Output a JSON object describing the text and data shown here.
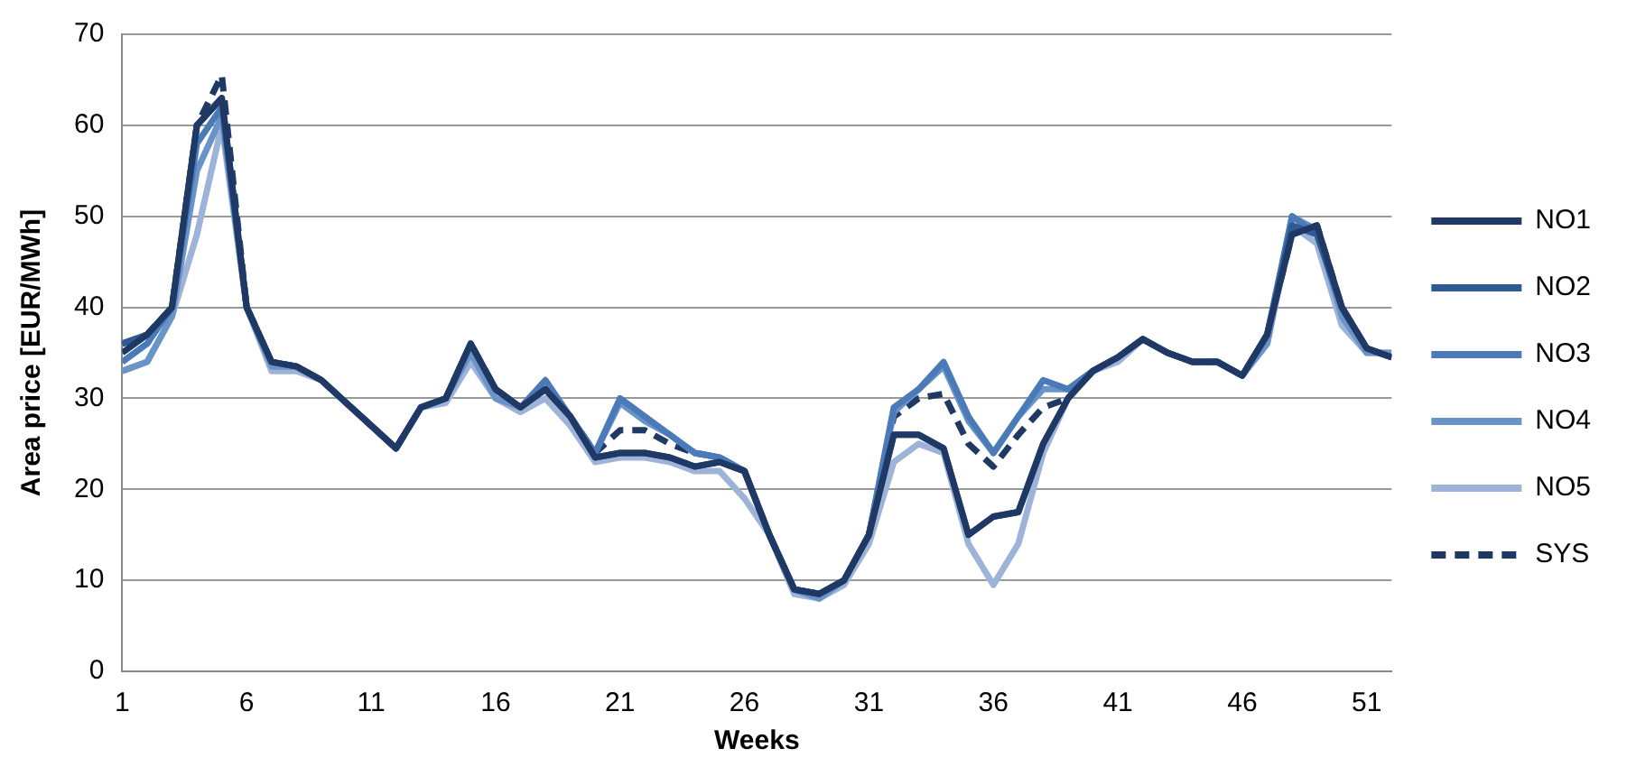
{
  "chart_data": {
    "type": "line",
    "xlabel": "Weeks",
    "ylabel": "Area price [EUR/MWh]",
    "x": [
      1,
      2,
      3,
      4,
      5,
      6,
      7,
      8,
      9,
      10,
      11,
      12,
      13,
      14,
      15,
      16,
      17,
      18,
      19,
      20,
      21,
      22,
      23,
      24,
      25,
      26,
      27,
      28,
      29,
      30,
      31,
      32,
      33,
      34,
      35,
      36,
      37,
      38,
      39,
      40,
      41,
      42,
      43,
      44,
      45,
      46,
      47,
      48,
      49,
      50,
      51,
      52
    ],
    "xlim": [
      1,
      52
    ],
    "xticks": [
      1,
      6,
      11,
      16,
      21,
      26,
      31,
      36,
      41,
      46,
      51
    ],
    "ylim": [
      0,
      70
    ],
    "yticks": [
      0,
      10,
      20,
      30,
      40,
      50,
      60,
      70
    ],
    "grid": "y",
    "legend": "right",
    "marker": "none",
    "line_style": "solid",
    "series": [
      {
        "name": "NO1",
        "color": "#1f3864",
        "values": [
          35,
          37,
          40,
          60,
          63,
          40,
          34,
          33.5,
          32,
          29.5,
          27,
          24.5,
          29,
          30,
          36,
          31,
          29,
          31,
          28,
          23.5,
          24,
          24,
          23.5,
          22.5,
          23,
          22,
          15,
          9,
          8.5,
          10,
          15,
          26,
          26,
          24.5,
          15,
          17,
          17.5,
          25,
          30,
          33,
          34.5,
          36.5,
          35,
          34,
          34,
          32.5,
          37,
          48,
          49,
          40,
          35.5,
          34.5
        ]
      },
      {
        "name": "NO2",
        "color": "#2e5b94",
        "values": [
          36,
          37,
          40,
          60,
          63,
          40,
          34,
          33.5,
          32,
          29.5,
          27,
          24.5,
          29,
          30,
          36,
          31,
          29,
          31,
          28,
          23.5,
          24,
          24,
          23.5,
          22.5,
          23,
          22,
          15,
          9,
          8.5,
          10,
          15,
          26,
          26,
          24.5,
          15,
          17,
          17.5,
          25,
          30,
          33,
          34.5,
          36.5,
          35,
          34,
          34,
          32.5,
          37,
          49,
          48,
          40,
          35.5,
          34.5
        ]
      },
      {
        "name": "NO3",
        "color": "#4a7ab8",
        "values": [
          34,
          36,
          40,
          58,
          62,
          40,
          34,
          33.5,
          32,
          29.5,
          27,
          24.5,
          29,
          30,
          36,
          31,
          29,
          32,
          28,
          24,
          30,
          28,
          26,
          24,
          23.5,
          22,
          15,
          9,
          8.5,
          10,
          15,
          29,
          31,
          34,
          28,
          24,
          28,
          32,
          31,
          33,
          34.5,
          36.5,
          35,
          34,
          34,
          32.5,
          37,
          50,
          48,
          40,
          35.5,
          34.5
        ]
      },
      {
        "name": "NO4",
        "color": "#6a93c8",
        "values": [
          33,
          34,
          39,
          55,
          61,
          40,
          33.5,
          33.5,
          32,
          29.5,
          27,
          24.5,
          29,
          30,
          35,
          30,
          29,
          31,
          28,
          24,
          29.5,
          27.5,
          26,
          24,
          23.5,
          22,
          15,
          9,
          8,
          10,
          15,
          28.5,
          31,
          33.5,
          27.5,
          24,
          28,
          31,
          31,
          33,
          34.5,
          36.5,
          35,
          34,
          34,
          32.5,
          36,
          50,
          48.5,
          39,
          35,
          35
        ]
      },
      {
        "name": "NO5",
        "color": "#9db4d8",
        "values": [
          33,
          34,
          39,
          48,
          60,
          40,
          33,
          33,
          32,
          29.5,
          27,
          24.5,
          29,
          29.5,
          34,
          30,
          28.5,
          30,
          27,
          23,
          23.5,
          23.5,
          23,
          22,
          22,
          19,
          15,
          8.5,
          8,
          9.5,
          14,
          23,
          25,
          24,
          14,
          9.5,
          14,
          24,
          30,
          33,
          34,
          36.5,
          35,
          34,
          34,
          32.5,
          36,
          49,
          47,
          38,
          35,
          35
        ]
      },
      {
        "name": "SYS",
        "color": "#1f3864",
        "line_style": "dashed",
        "values": [
          36,
          37,
          40,
          60,
          65.5,
          40,
          34,
          33.5,
          32,
          29.5,
          27,
          24.5,
          29,
          30,
          36,
          31,
          29,
          31,
          28,
          24,
          26.5,
          26.5,
          25,
          24,
          23.5,
          22,
          15,
          9,
          8.5,
          10,
          15,
          28,
          30,
          30.5,
          25,
          22.5,
          26,
          29,
          30,
          33,
          34.5,
          36.5,
          35,
          34,
          34,
          32.5,
          37,
          48,
          49,
          40,
          35.5,
          34.5
        ]
      }
    ]
  }
}
